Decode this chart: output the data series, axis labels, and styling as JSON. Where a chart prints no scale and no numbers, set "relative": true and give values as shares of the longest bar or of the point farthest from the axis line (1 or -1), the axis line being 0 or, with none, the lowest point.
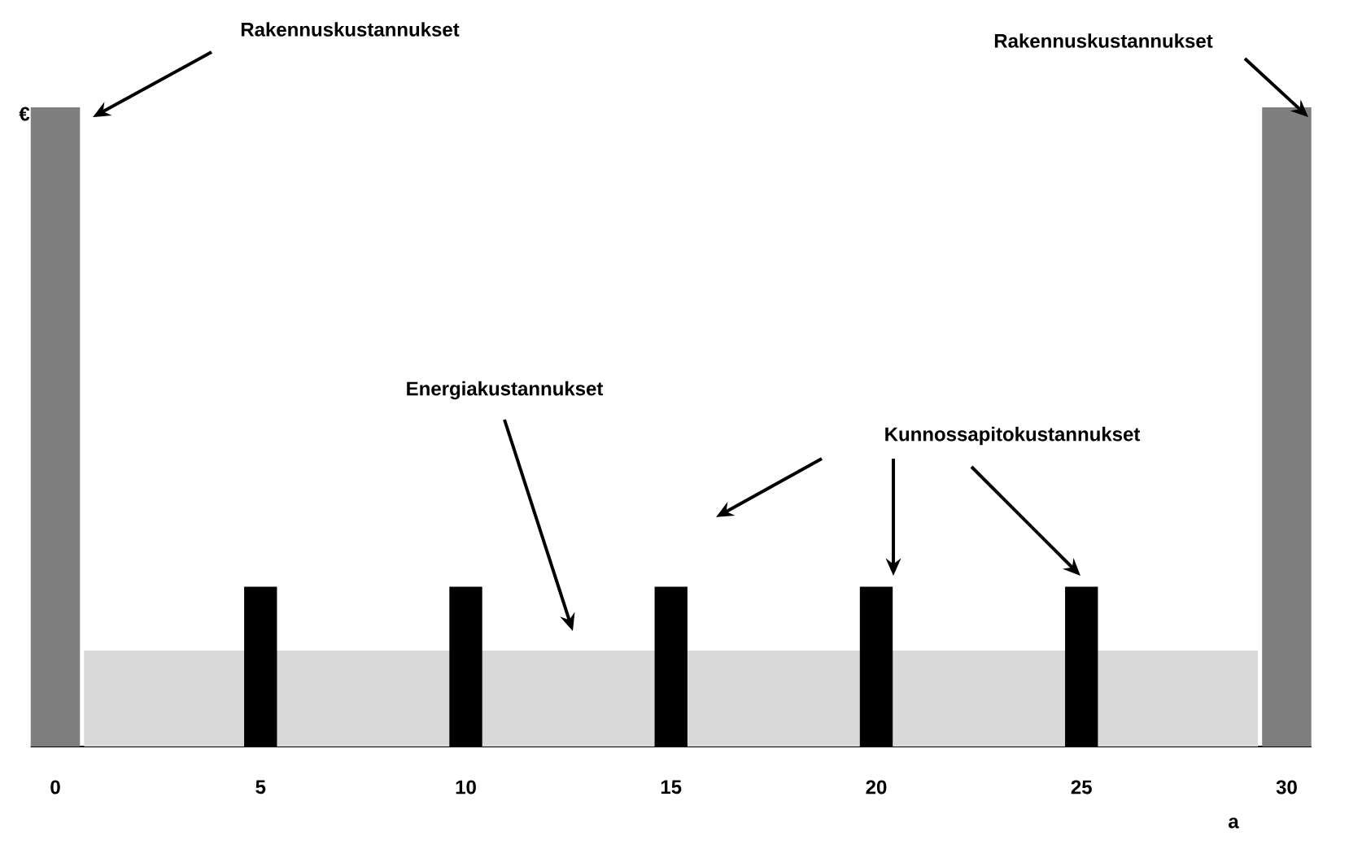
{
  "chart_data": {
    "type": "bar",
    "relative": true,
    "ylabel": "€",
    "xlabel": "a",
    "xlim": [
      -0.6,
      30.6
    ],
    "xticks": [
      0,
      5,
      10,
      15,
      20,
      25,
      30
    ],
    "series": [
      {
        "type": "area",
        "color": "#d9d9d9",
        "x": [
          0.7,
          29.3
        ],
        "values": [
          0.15,
          0.15
        ]
      },
      {
        "color": "#7f7f7f",
        "x": [
          0,
          30
        ],
        "values": [
          1,
          1
        ]
      },
      {
        "color": "#000000",
        "x": [
          5,
          10,
          15,
          20,
          25
        ],
        "values": [
          0.25,
          0.25,
          0.25,
          0.25,
          0.25
        ]
      }
    ],
    "annotations": [
      "Rakennuskustannukset",
      "Rakennuskustannukset",
      "Energiakustannukset",
      "Kunnossapitokustannukset"
    ]
  }
}
